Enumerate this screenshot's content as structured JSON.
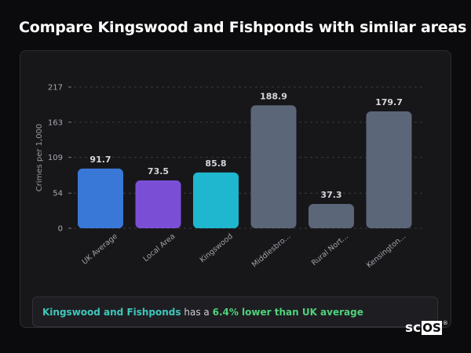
{
  "page": {
    "title": "Compare Kingswood and Fishponds with similar areas"
  },
  "chart_data": {
    "type": "bar",
    "ylabel": "Crimes per 1,000",
    "ylim": [
      0,
      217
    ],
    "yticks": [
      0,
      54,
      109,
      163,
      217
    ],
    "grid": true,
    "categories": [
      "UK Average",
      "Local Area",
      "Kingswood",
      "Middlesbro...",
      "Rural Nort...",
      "Kensington..."
    ],
    "values": [
      91.7,
      73.5,
      85.8,
      188.9,
      37.3,
      179.7
    ],
    "value_labels": [
      "91.7",
      "73.5",
      "85.8",
      "188.9",
      "37.3",
      "179.7"
    ],
    "colors": [
      "#3a78d8",
      "#7a4fd6",
      "#1fb7cf",
      "#5c6679",
      "#5c6679",
      "#5c6679"
    ]
  },
  "summary": {
    "area": "Kingswood and Fishponds",
    "middle": "has a",
    "difference": "6.4% lower than UK average"
  },
  "logo": {
    "prefix": "sc",
    "boxed": "OS",
    "mark": "®"
  }
}
